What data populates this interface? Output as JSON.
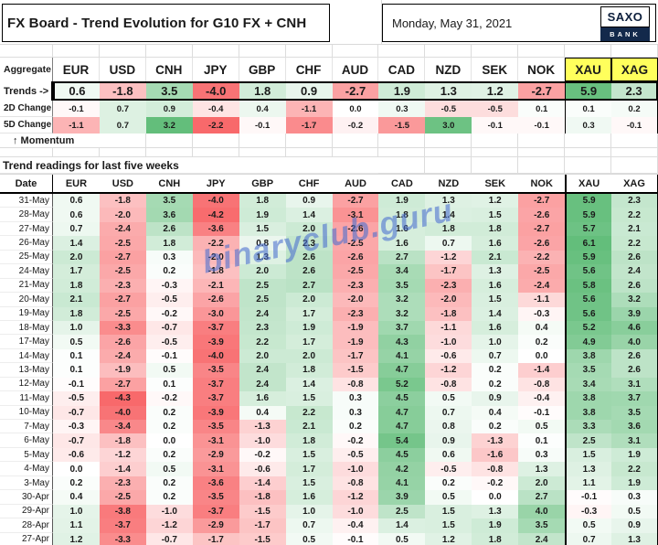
{
  "header": {
    "title": "FX Board - Trend Evolution for G10 FX + CNH",
    "date": "Monday, May 31, 2021",
    "logo_top": "SAXO",
    "logo_bottom": "BANK"
  },
  "columns": [
    "EUR",
    "USD",
    "CNH",
    "JPY",
    "GBP",
    "CHF",
    "AUD",
    "CAD",
    "NZD",
    "SEK",
    "NOK",
    "XAU",
    "XAG"
  ],
  "aggregate": {
    "label": "Aggregate",
    "trends_label": "Trends ->",
    "trends": [
      0.6,
      -1.8,
      3.5,
      -4.0,
      1.8,
      0.9,
      -2.7,
      1.9,
      1.3,
      1.2,
      -2.7,
      5.9,
      2.3
    ],
    "change_2d_label": "2D Change",
    "change_2d": [
      -0.1,
      0.7,
      0.9,
      -0.4,
      0.4,
      -1.1,
      0.0,
      0.3,
      -0.5,
      -0.5,
      0.1,
      0.1,
      0.2
    ],
    "change_5d_label": "5D Change",
    "change_5d": [
      -1.1,
      0.7,
      3.2,
      -2.2,
      -0.1,
      -1.7,
      -0.2,
      -1.5,
      3.0,
      -0.1,
      -0.1,
      0.3,
      -0.1
    ],
    "momentum_label": "↑ Momentum"
  },
  "weekly": {
    "section_title": "Trend readings for last five weeks",
    "date_col_label": "Date",
    "rows": [
      {
        "date": "31-May",
        "values": [
          0.6,
          -1.8,
          3.5,
          -4.0,
          1.8,
          0.9,
          -2.7,
          1.9,
          1.3,
          1.2,
          -2.7,
          5.9,
          2.3
        ]
      },
      {
        "date": "28-May",
        "values": [
          0.6,
          -2.0,
          3.6,
          -4.2,
          1.9,
          1.4,
          -3.1,
          1.8,
          1.4,
          1.5,
          -2.6,
          5.9,
          2.2
        ]
      },
      {
        "date": "27-May",
        "values": [
          0.7,
          -2.4,
          2.6,
          -3.6,
          1.5,
          2.0,
          -2.6,
          1.6,
          1.8,
          1.8,
          -2.7,
          5.7,
          2.1
        ]
      },
      {
        "date": "26-May",
        "values": [
          1.4,
          -2.5,
          1.8,
          -2.2,
          0.8,
          2.3,
          -2.5,
          1.6,
          0.7,
          1.6,
          -2.6,
          6.1,
          2.2
        ]
      },
      {
        "date": "25-May",
        "values": [
          2.0,
          -2.7,
          0.3,
          -2.0,
          1.3,
          2.6,
          -2.6,
          2.7,
          -1.2,
          2.1,
          -2.2,
          5.9,
          2.6
        ]
      },
      {
        "date": "24-May",
        "values": [
          1.7,
          -2.5,
          0.2,
          -1.8,
          2.0,
          2.6,
          -2.5,
          3.4,
          -1.7,
          1.3,
          -2.5,
          5.6,
          2.4
        ]
      },
      {
        "date": "21-May",
        "values": [
          1.8,
          -2.3,
          -0.3,
          -2.1,
          2.5,
          2.7,
          -2.3,
          3.5,
          -2.3,
          1.6,
          -2.4,
          5.8,
          2.6
        ]
      },
      {
        "date": "20-May",
        "values": [
          2.1,
          -2.7,
          -0.5,
          -2.6,
          2.5,
          2.0,
          -2.0,
          3.2,
          -2.0,
          1.5,
          -1.1,
          5.6,
          3.2
        ]
      },
      {
        "date": "19-May",
        "values": [
          1.8,
          -2.5,
          -0.2,
          -3.0,
          2.4,
          1.7,
          -2.3,
          3.2,
          -1.8,
          1.4,
          -0.3,
          5.6,
          3.9
        ]
      },
      {
        "date": "18-May",
        "values": [
          1.0,
          -3.3,
          -0.7,
          -3.7,
          2.3,
          1.9,
          -1.9,
          3.7,
          -1.1,
          1.6,
          0.4,
          5.2,
          4.6
        ]
      },
      {
        "date": "17-May",
        "values": [
          0.5,
          -2.6,
          -0.5,
          -3.9,
          2.2,
          1.7,
          -1.9,
          4.3,
          -1.0,
          1.0,
          0.2,
          4.9,
          4.0
        ]
      },
      {
        "date": "14-May",
        "values": [
          0.1,
          -2.4,
          -0.1,
          -4.0,
          2.0,
          2.0,
          -1.7,
          4.1,
          -0.6,
          0.7,
          0.0,
          3.8,
          2.6
        ]
      },
      {
        "date": "13-May",
        "values": [
          0.1,
          -1.9,
          0.5,
          -3.5,
          2.4,
          1.8,
          -1.5,
          4.7,
          -1.2,
          0.2,
          -1.4,
          3.5,
          2.6
        ]
      },
      {
        "date": "12-May",
        "values": [
          -0.1,
          -2.7,
          0.1,
          -3.7,
          2.4,
          1.4,
          -0.8,
          5.2,
          -0.8,
          0.2,
          -0.8,
          3.4,
          3.1
        ]
      },
      {
        "date": "11-May",
        "values": [
          -0.5,
          -4.3,
          -0.2,
          -3.7,
          1.6,
          1.5,
          0.3,
          4.5,
          0.5,
          0.9,
          -0.4,
          3.8,
          3.7
        ]
      },
      {
        "date": "10-May",
        "values": [
          -0.7,
          -4.0,
          0.2,
          -3.9,
          0.4,
          2.2,
          0.3,
          4.7,
          0.7,
          0.4,
          -0.1,
          3.8,
          3.5
        ]
      },
      {
        "date": "7-May",
        "values": [
          -0.3,
          -3.4,
          0.2,
          -3.5,
          -1.3,
          2.1,
          0.2,
          4.7,
          0.8,
          0.2,
          0.5,
          3.3,
          3.6
        ]
      },
      {
        "date": "6-May",
        "values": [
          -0.7,
          -1.8,
          0.0,
          -3.1,
          -1.0,
          1.8,
          -0.2,
          5.4,
          0.9,
          -1.3,
          0.1,
          2.5,
          3.1
        ]
      },
      {
        "date": "5-May",
        "values": [
          -0.6,
          -1.2,
          0.2,
          -2.9,
          -0.2,
          1.5,
          -0.5,
          4.5,
          0.6,
          -1.6,
          0.3,
          1.5,
          1.9
        ]
      },
      {
        "date": "4-May",
        "values": [
          0.0,
          -1.4,
          0.5,
          -3.1,
          -0.6,
          1.7,
          -1.0,
          4.2,
          -0.5,
          -0.8,
          1.3,
          1.3,
          2.2
        ]
      },
      {
        "date": "3-May",
        "values": [
          0.2,
          -2.3,
          0.2,
          -3.6,
          -1.4,
          1.5,
          -0.8,
          4.1,
          0.2,
          -0.2,
          2.0,
          1.1,
          1.9
        ]
      },
      {
        "date": "30-Apr",
        "values": [
          0.4,
          -2.5,
          0.2,
          -3.5,
          -1.8,
          1.6,
          -1.2,
          3.9,
          0.5,
          0.0,
          2.7,
          -0.1,
          0.3
        ]
      },
      {
        "date": "29-Apr",
        "values": [
          1.0,
          -3.8,
          -1.0,
          -3.7,
          -1.5,
          1.0,
          -1.0,
          2.5,
          1.5,
          1.3,
          4.0,
          -0.3,
          0.5
        ]
      },
      {
        "date": "28-Apr",
        "values": [
          1.1,
          -3.7,
          -1.2,
          -2.9,
          -1.7,
          0.7,
          -0.4,
          1.4,
          1.5,
          1.9,
          3.5,
          0.5,
          0.9
        ]
      },
      {
        "date": "27-Apr",
        "values": [
          1.2,
          -3.3,
          -0.7,
          -1.7,
          -1.5,
          0.5,
          -0.1,
          0.5,
          1.2,
          1.8,
          2.4,
          0.7,
          1.3
        ]
      }
    ]
  },
  "watermark": "binaryclub.guru",
  "colors": {
    "positive_max": "#63BE7B",
    "negative_max": "#F8696B",
    "metal_header_bg": "#FFFF5C",
    "logo_navy": "#13294B",
    "watermark_blue": "#4A6FD0"
  }
}
